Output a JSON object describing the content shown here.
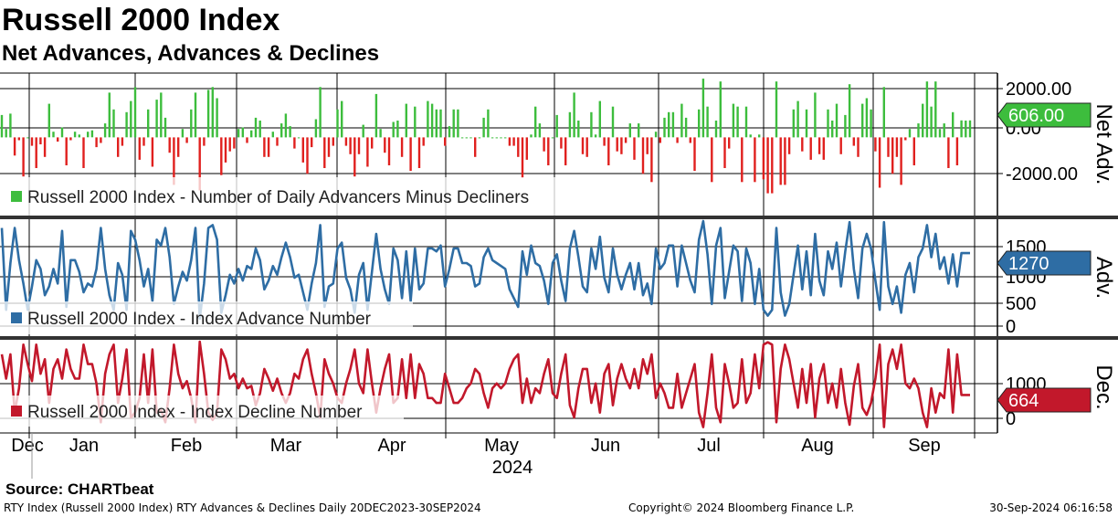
{
  "header": {
    "title": "Russell 2000 Index",
    "subtitle": "Net Advances, Advances & Declines"
  },
  "footer": {
    "source": "Source:  CHARTbeat",
    "left": "RTY Index (Russell 2000 Index) RTY Advances & Declines  Daily 20DEC2023-30SEP2024",
    "middle": "Copyright© 2024 Bloomberg Finance L.P.",
    "right": "30-Sep-2024 06:16:58"
  },
  "colors": {
    "positive": "#3dbd3d",
    "negative": "#e0201e",
    "advance": "#2e6da4",
    "decline": "#c2182b",
    "last_net_tag": "#3dbd3d",
    "last_adv_tag": "#2e6da4",
    "last_dec_tag": "#c2182b"
  },
  "chart_data": [
    {
      "type": "bar",
      "panel": "net",
      "side_label": "Net Adv.",
      "legend": "Russell 2000 Index - Number of Daily Advancers Minus Decliners",
      "yticks": [
        "2000.00",
        "0.00",
        "-2000.00"
      ],
      "ylim": [
        -2800,
        2300
      ],
      "last_value": "606.00",
      "values": [
        800,
        300,
        850,
        -650,
        -100,
        -1400,
        0,
        -300,
        -1100,
        -250,
        -700,
        1200,
        200,
        -150,
        350,
        -1000,
        -100,
        200,
        100,
        -1100,
        200,
        250,
        -350,
        -200,
        500,
        1600,
        1000,
        -700,
        -300,
        900,
        1300,
        1800,
        -800,
        -300,
        1000,
        -1050,
        1350,
        1600,
        700,
        -550,
        -1700,
        -700,
        300,
        -200,
        1000,
        1600,
        -1900,
        -300,
        1700,
        1800,
        1400,
        -1350,
        -900,
        -500,
        -400,
        300,
        350,
        -200,
        250,
        700,
        600,
        -700,
        -700,
        200,
        -300,
        500,
        850,
        400,
        -400,
        0,
        -900,
        -1300,
        -350,
        650,
        1800,
        -1100,
        -700,
        -300,
        1000,
        1300,
        -300,
        -600,
        -1400,
        -600,
        450,
        -1050,
        -400,
        1550,
        300,
        -550,
        -1000,
        550,
        600,
        -700,
        1200,
        -1200,
        1100,
        -1100,
        -300,
        1300,
        1200,
        1000,
        1000,
        -300,
        400,
        1000,
        1000,
        0,
        0,
        0,
        -700,
        0,
        700,
        1000,
        0,
        0,
        0,
        0,
        -300,
        -300,
        -700,
        -1450,
        -800,
        100,
        1100,
        500,
        -500,
        -1000,
        0,
        800,
        -400,
        -1000,
        900,
        1600,
        600,
        -600,
        -700,
        900,
        100,
        1300,
        -300,
        -1000,
        1100,
        -500,
        -600,
        -200,
        500,
        -800,
        500,
        -1300,
        -600,
        -1600,
        200,
        -200,
        700,
        900,
        900,
        -200,
        1200,
        700,
        -200,
        -1200,
        1000,
        2100,
        1100,
        -1600,
        600,
        2000,
        -1100,
        -400,
        1200,
        1100,
        -1600,
        1100,
        100,
        -1600,
        100,
        -1500,
        -2000,
        -2000,
        2000,
        -1700,
        -1700,
        -600,
        1000,
        1300,
        -500,
        1000,
        -800,
        1600,
        -600,
        -800,
        1000,
        600,
        1200,
        -600,
        800,
        1900,
        -300,
        -700,
        1200,
        1400,
        1000,
        -500,
        -1800,
        1800,
        -700,
        -1300,
        -700,
        -1700,
        -100,
        300,
        -1000,
        500,
        1200,
        2000,
        1100,
        2000,
        300,
        500,
        -1100,
        900,
        -1000,
        606,
        600,
        606
      ]
    },
    {
      "type": "line",
      "panel": "adv",
      "side_label": "Adv.",
      "legend": "Russell 2000 Index - Index Advance Number",
      "yticks": [
        "1500",
        "1000",
        "500",
        "0"
      ],
      "ylim": [
        -150,
        1850
      ],
      "last_value": "1270",
      "values": [
        1700,
        300,
        1100,
        1700,
        1150,
        750,
        300,
        700,
        1150,
        1000,
        550,
        700,
        1000,
        750,
        1650,
        350,
        1150,
        1150,
        950,
        600,
        750,
        700,
        1000,
        1700,
        1000,
        550,
        300,
        1100,
        900,
        300,
        1650,
        1500,
        1150,
        700,
        1000,
        450,
        1500,
        1400,
        1700,
        1200,
        400,
        700,
        950,
        800,
        1150,
        1700,
        150,
        750,
        1700,
        1750,
        1500,
        250,
        550,
        900,
        750,
        1000,
        800,
        1050,
        1000,
        1350,
        1150,
        650,
        800,
        1050,
        900,
        1200,
        1450,
        1200,
        850,
        900,
        600,
        300,
        750,
        1100,
        1750,
        350,
        700,
        750,
        1350,
        1450,
        850,
        650,
        250,
        900,
        1100,
        300,
        950,
        1600,
        1000,
        650,
        400,
        1350,
        1150,
        500,
        1300,
        450,
        1350,
        650,
        750,
        1350,
        1350,
        1300,
        1400,
        700,
        1000,
        1350,
        1350,
        1100,
        1100,
        1050,
        700,
        750,
        1200,
        1350,
        1150,
        1100,
        1050,
        1000,
        650,
        500,
        350,
        1300,
        900,
        1400,
        1100,
        1050,
        800,
        400,
        1100,
        1250,
        800,
        450,
        1350,
        1650,
        1200,
        700,
        600,
        1350,
        1000,
        1550,
        850,
        600,
        1350,
        900,
        650,
        900,
        1100,
        650,
        1100,
        550,
        750,
        400,
        1350,
        1000,
        1100,
        1400,
        1400,
        700,
        1400,
        1100,
        800,
        600,
        1500,
        1850,
        1250,
        400,
        1400,
        1700,
        500,
        950,
        1400,
        1300,
        450,
        1350,
        1100,
        400,
        1000,
        300,
        200,
        300,
        1700,
        600,
        200,
        400,
        900,
        1400,
        650,
        1300,
        550,
        1600,
        800,
        550,
        1300,
        1000,
        1450,
        700,
        1300,
        1800,
        1000,
        500,
        1350,
        1600,
        1350,
        800,
        300,
        1800,
        700,
        400,
        700,
        250,
        900,
        1100,
        600,
        1200,
        1350,
        1750,
        1200,
        1600,
        1000,
        1200,
        750,
        1250,
        700,
        1270,
        1270,
        1270
      ]
    },
    {
      "type": "line",
      "panel": "dec",
      "side_label": "Dec.",
      "legend": "Russell 2000 Index - Index Decline Number",
      "yticks": [
        "1000",
        "0"
      ],
      "ylim": [
        -120,
        1800
      ],
      "last_value": "664",
      "values": [
        1500,
        1000,
        1500,
        300,
        800,
        1700,
        1300,
        950,
        1700,
        1100,
        1400,
        500,
        1200,
        1400,
        1000,
        1600,
        1200,
        1000,
        1000,
        1700,
        1300,
        1300,
        900,
        100,
        1100,
        1500,
        1700,
        500,
        1000,
        1600,
        200,
        300,
        600,
        1500,
        500,
        1600,
        300,
        350,
        100,
        800,
        1700,
        1100,
        800,
        950,
        600,
        100,
        1800,
        1100,
        300,
        150,
        300,
        1600,
        1400,
        1000,
        1100,
        800,
        1000,
        800,
        850,
        450,
        700,
        1200,
        1000,
        750,
        1000,
        700,
        500,
        700,
        1100,
        1000,
        1400,
        1600,
        1100,
        700,
        200,
        1400,
        1100,
        900,
        600,
        500,
        900,
        1200,
        1600,
        900,
        700,
        1600,
        900,
        300,
        800,
        1200,
        1500,
        500,
        600,
        1400,
        600,
        1500,
        600,
        1300,
        1100,
        600,
        600,
        500,
        500,
        1100,
        800,
        500,
        500,
        600,
        800,
        900,
        1200,
        1100,
        700,
        400,
        800,
        900,
        800,
        900,
        1200,
        1400,
        1500,
        500,
        1000,
        500,
        800,
        700,
        1100,
        1400,
        700,
        600,
        1100,
        1500,
        450,
        200,
        800,
        1200,
        1200,
        500,
        900,
        300,
        1100,
        1300,
        450,
        1000,
        1300,
        1000,
        800,
        1200,
        800,
        1400,
        1100,
        1500,
        600,
        900,
        700,
        400,
        400,
        1100,
        400,
        700,
        1000,
        1300,
        300,
        0,
        700,
        1500,
        400,
        100,
        1300,
        900,
        400,
        500,
        1400,
        500,
        700,
        1500,
        800,
        1700,
        1750,
        1700,
        100,
        1200,
        1700,
        1400,
        900,
        400,
        1200,
        500,
        1300,
        200,
        1000,
        1300,
        500,
        900,
        400,
        1200,
        500,
        50,
        850,
        1300,
        400,
        250,
        500,
        1000,
        1700,
        0,
        1300,
        1600,
        1200,
        1700,
        900,
        800,
        1000,
        800,
        300,
        0,
        800,
        300,
        700,
        600,
        1600,
        300,
        1500,
        664,
        664,
        664
      ]
    }
  ],
  "x_axis": {
    "months": [
      "Dec",
      "Jan",
      "Feb",
      "Mar",
      "Apr",
      "May",
      "Jun",
      "Jul",
      "Aug",
      "Sep"
    ],
    "year": "2024"
  }
}
